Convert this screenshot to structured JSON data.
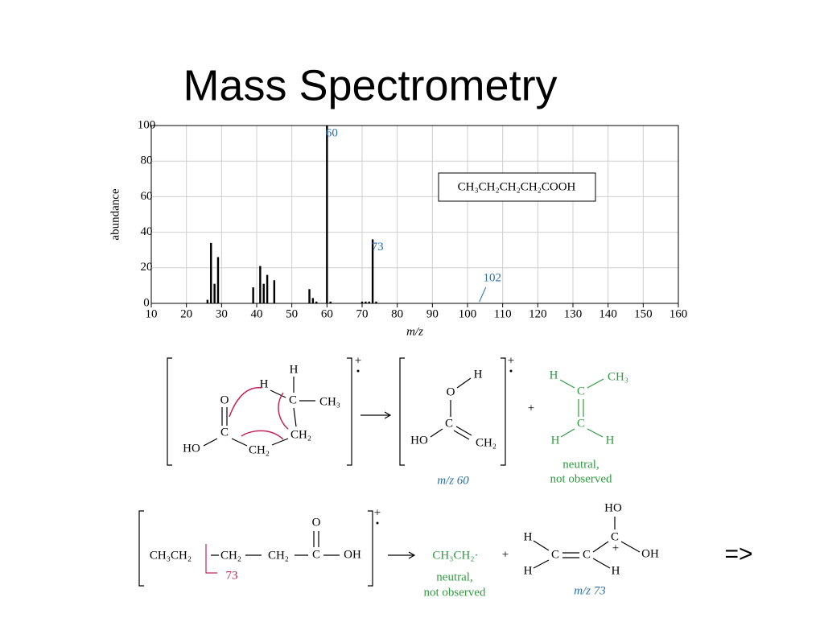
{
  "chart_data": {
    "type": "bar",
    "title": "Mass Spectrometry",
    "x_label": "m/z",
    "y_label": "abundance",
    "x": [
      26,
      27,
      28,
      29,
      39,
      41,
      42,
      43,
      45,
      55,
      56,
      57,
      60,
      61,
      70,
      71,
      72,
      73,
      74
    ],
    "values": [
      2,
      34,
      11,
      26,
      9,
      21,
      11,
      16,
      13,
      8,
      3,
      1,
      100,
      1,
      1,
      1,
      1,
      36,
      1
    ],
    "color": "#000000",
    "xlim": [
      10,
      160
    ],
    "xticks": [
      10,
      20,
      30,
      40,
      50,
      60,
      70,
      80,
      90,
      100,
      110,
      120,
      130,
      140,
      150,
      160
    ],
    "ylim": [
      0,
      100
    ],
    "yticks": [
      0,
      20,
      40,
      60,
      80,
      100
    ],
    "grid": true,
    "annotations": [
      {
        "label": "60",
        "x": 60
      },
      {
        "label": "73",
        "x": 73
      },
      {
        "label": "102",
        "x": 102
      }
    ],
    "formula": "CH₃CH₂CH₂CH₂COOH"
  },
  "reaction1": {
    "reactant": [
      "H",
      "H",
      "C",
      "CH₃",
      "O",
      "C",
      "CH₂",
      "HO",
      "CH₂"
    ],
    "charge": "+",
    "product": [
      "H",
      "O",
      "C",
      "HO",
      "CH₂"
    ],
    "product_charge": "+",
    "product_label": "m/z 60",
    "plus": "+",
    "byproduct": [
      "H",
      "CH₃",
      "C",
      "C",
      "H",
      "H"
    ],
    "byproduct_note": [
      "neutral,",
      "not observed"
    ]
  },
  "reaction2": {
    "reactant": [
      "CH₃CH₂",
      "CH₂",
      "CH₂",
      "C",
      "OH",
      "O"
    ],
    "cleavage_label": "73",
    "charge": "+",
    "product": "CH₃CH₂·",
    "product_note": [
      "neutral,",
      "not observed"
    ],
    "plus": "+",
    "ion": [
      "HO",
      "C",
      "H",
      "C",
      "C",
      "OH",
      "+",
      "H",
      "H"
    ],
    "ion_label": "m/z 73"
  },
  "next": "=>"
}
